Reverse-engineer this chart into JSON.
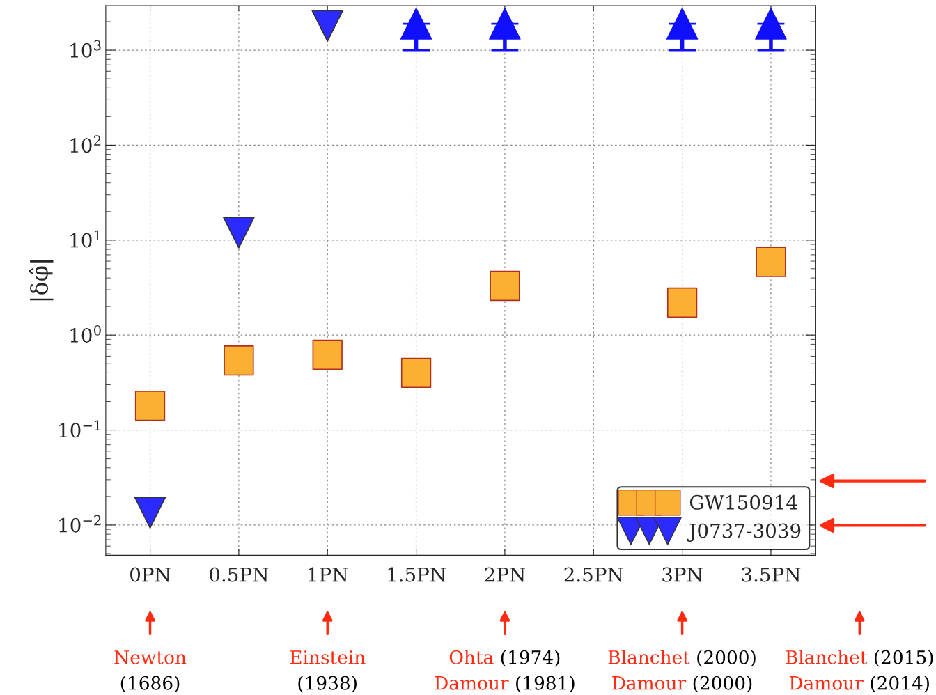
{
  "chart_data": {
    "type": "scatter",
    "ylabel": "|δφ̂|",
    "categories": [
      "0PN",
      "0.5PN",
      "1PN",
      "1.5PN",
      "2PN",
      "2.5PN",
      "3PN",
      "3.5PN"
    ],
    "series": [
      {
        "name": "GW150914",
        "color": "#fbb034",
        "marker": "square",
        "values": [
          0.18,
          0.54,
          0.62,
          0.4,
          3.3,
          null,
          2.2,
          5.9
        ]
      },
      {
        "name": "J0737-3039",
        "color": "#2b2bff",
        "marker": "triangle",
        "values": [
          0.0135,
          12,
          1800,
          null,
          null,
          null,
          null,
          null
        ]
      },
      {
        "color": "#1010ff",
        "marker": "triangle",
        "values": [
          null,
          null,
          null,
          1900,
          1900,
          null,
          1900,
          1900
        ],
        "errors": [
          null,
          null,
          null,
          [
            1000,
            1900
          ],
          [
            1000,
            1900
          ],
          null,
          [
            1000,
            1900
          ],
          [
            1000,
            1900
          ]
        ]
      }
    ],
    "log": "y",
    "ylim": [
      0.0048,
      2950
    ],
    "yticks": [
      {
        "value": 0.01,
        "label": "10$^{−2}$"
      },
      {
        "value": 0.1,
        "label": "10$^{−1}$"
      },
      {
        "value": 1,
        "label": "10$^{0}$"
      },
      {
        "value": 10,
        "label": "10$^{1}$"
      },
      {
        "value": 100,
        "label": "10$^{2}$"
      },
      {
        "value": 1000,
        "label": "10$^{3}$"
      }
    ],
    "grid": true,
    "legend": "bottom right",
    "annotations": [
      "Newton\n(1686)",
      "Einstein\n(1938)",
      "Ohta (1974)\nDamour (1981)",
      "Blanchet (2000)\nDamour (2000)",
      "Blanchet (2015)\nDamour (2014)"
    ]
  }
}
